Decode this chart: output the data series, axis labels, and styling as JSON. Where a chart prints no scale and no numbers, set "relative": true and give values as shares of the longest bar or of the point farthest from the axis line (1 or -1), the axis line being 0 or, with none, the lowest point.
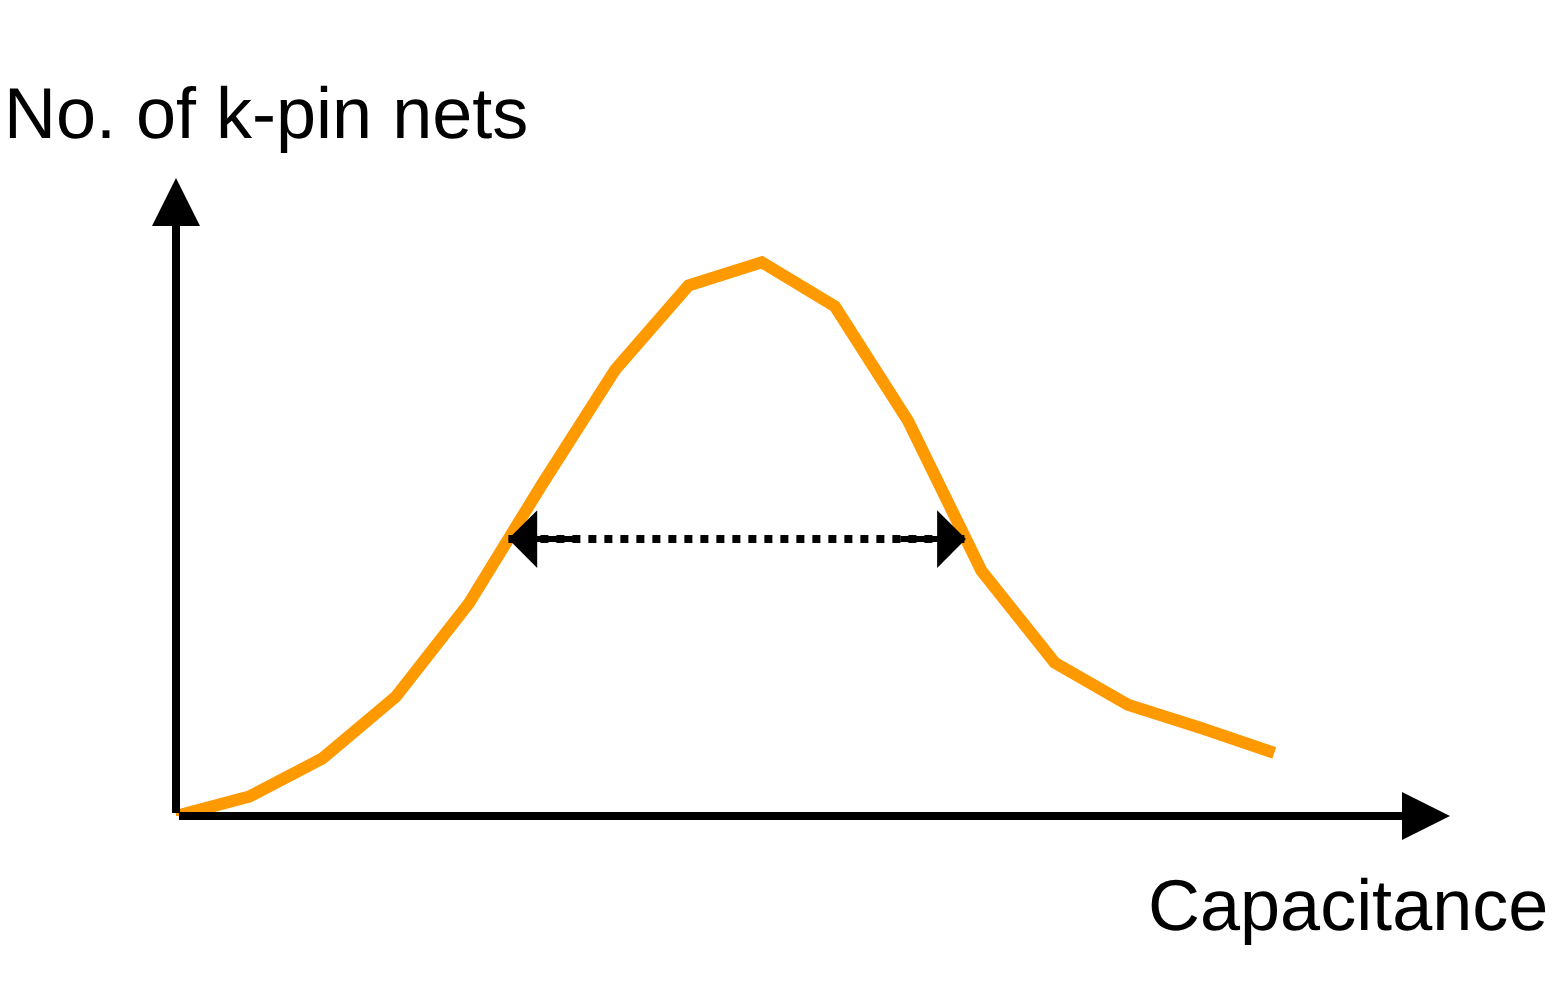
{
  "chart_data": {
    "type": "line",
    "relative": true,
    "xlabel": "Capacitance",
    "ylabel": "No. of k-pin nets",
    "categories": [
      null,
      null,
      null,
      null,
      null,
      null,
      null,
      null,
      null,
      null,
      null,
      null,
      null,
      null,
      null,
      null
    ],
    "series": [
      {
        "color": "#ff9900",
        "values": [
          0,
          0.035,
          0.104,
          0.215,
          0.384,
          0.599,
          0.806,
          0.958,
          1,
          0.92,
          0.713,
          0.443,
          0.277,
          0.201,
          0.159,
          0.114
        ]
      }
    ],
    "legend": false,
    "marker": "none",
    "line_style": "solid"
  }
}
